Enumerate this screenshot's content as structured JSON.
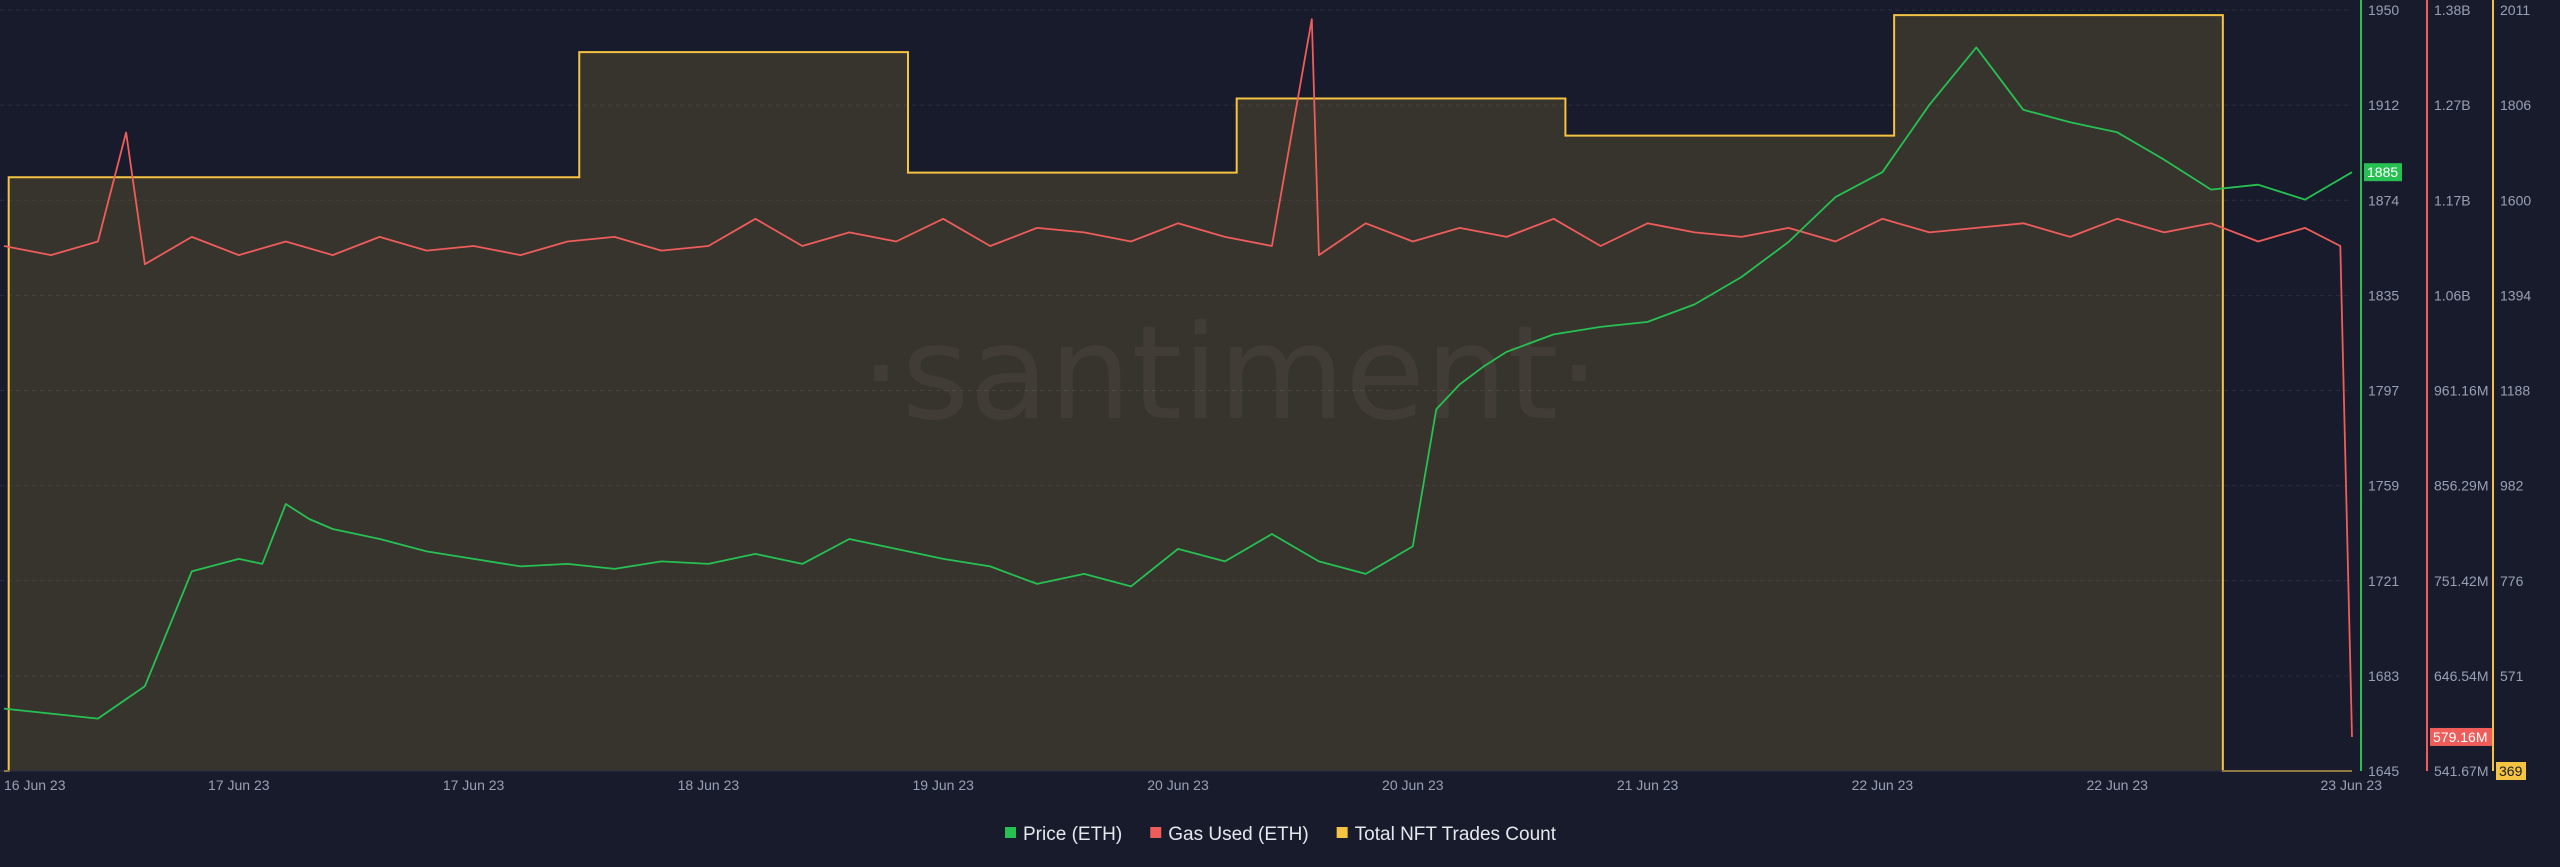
{
  "watermark": "·santiment·",
  "chart_data": {
    "type": "line",
    "x_labels": [
      "16 Jun 23",
      "17 Jun 23",
      "17 Jun 23",
      "18 Jun 23",
      "19 Jun 23",
      "20 Jun 23",
      "20 Jun 23",
      "21 Jun 23",
      "22 Jun 23",
      "22 Jun 23",
      "23 Jun 23"
    ],
    "grid": "horizontal dashed",
    "legend_position": "bottom-center",
    "axes": {
      "price": {
        "ticks": [
          "1950",
          "1912",
          "1874",
          "1835",
          "1797",
          "1759",
          "1721",
          "1683",
          "1645"
        ],
        "range": [
          1645,
          1950
        ],
        "current_badge": "1885"
      },
      "gas": {
        "ticks": [
          "1.38B",
          "1.27B",
          "1.17B",
          "1.06B",
          "961.16M",
          "856.29M",
          "751.42M",
          "646.54M",
          "541.67M"
        ],
        "range": [
          541670000,
          1380000000
        ],
        "current_badge": "579.16M"
      },
      "nft": {
        "ticks": [
          "2011",
          "1806",
          "1600",
          "1394",
          "1188",
          "982",
          "776",
          "571",
          "369"
        ],
        "range": [
          369,
          2011
        ],
        "current_badge": "369"
      }
    },
    "series": [
      {
        "name": "Price (ETH)",
        "color": "#26c152",
        "axis": "price",
        "x": [
          0,
          0.2,
          0.4,
          0.6,
          0.8,
          1,
          1.1,
          1.2,
          1.3,
          1.4,
          1.6,
          1.8,
          2,
          2.2,
          2.4,
          2.6,
          2.8,
          3,
          3.2,
          3.4,
          3.6,
          3.8,
          4,
          4.2,
          4.4,
          4.6,
          4.8,
          5,
          5.2,
          5.4,
          5.6,
          5.8,
          6,
          6.1,
          6.2,
          6.3,
          6.4,
          6.6,
          6.8,
          7,
          7.2,
          7.4,
          7.6,
          7.8,
          8,
          8.2,
          8.4,
          8.6,
          8.8,
          9,
          9.2,
          9.4,
          9.6,
          9.8,
          10
        ],
        "y": [
          1670,
          1668,
          1666,
          1679,
          1725,
          1730,
          1728,
          1752,
          1746,
          1742,
          1738,
          1733,
          1730,
          1727,
          1728,
          1726,
          1729,
          1728,
          1732,
          1728,
          1738,
          1734,
          1730,
          1727,
          1720,
          1724,
          1719,
          1734,
          1729,
          1740,
          1729,
          1724,
          1735,
          1790,
          1800,
          1807,
          1813,
          1820,
          1823,
          1825,
          1832,
          1843,
          1857,
          1875,
          1885,
          1912,
          1935,
          1910,
          1905,
          1901,
          1890,
          1878,
          1880,
          1874,
          1885
        ]
      },
      {
        "name": "Gas Used (ETH)",
        "color": "#ee5d5a",
        "axis": "gas",
        "x": [
          0,
          0.2,
          0.4,
          0.52,
          0.6,
          0.8,
          1,
          1.2,
          1.4,
          1.6,
          1.8,
          2,
          2.2,
          2.4,
          2.6,
          2.8,
          3,
          3.2,
          3.4,
          3.6,
          3.8,
          4,
          4.2,
          4.4,
          4.6,
          4.8,
          5,
          5.2,
          5.4,
          5.57,
          5.6,
          5.8,
          6,
          6.2,
          6.4,
          6.6,
          6.8,
          7,
          7.2,
          7.4,
          7.6,
          7.8,
          8,
          8.2,
          8.4,
          8.6,
          8.8,
          9,
          9.2,
          9.4,
          9.6,
          9.8,
          9.95,
          10
        ],
        "y": [
          1120000000,
          1110000000,
          1125000000,
          1245000000,
          1100000000,
          1130000000,
          1110000000,
          1125000000,
          1110000000,
          1130000000,
          1115000000,
          1120000000,
          1110000000,
          1125000000,
          1130000000,
          1115000000,
          1120000000,
          1150000000,
          1120000000,
          1135000000,
          1125000000,
          1150000000,
          1120000000,
          1140000000,
          1135000000,
          1125000000,
          1145000000,
          1130000000,
          1120000000,
          1370000000,
          1110000000,
          1145000000,
          1125000000,
          1140000000,
          1130000000,
          1150000000,
          1120000000,
          1145000000,
          1135000000,
          1130000000,
          1140000000,
          1125000000,
          1150000000,
          1135000000,
          1140000000,
          1145000000,
          1130000000,
          1150000000,
          1135000000,
          1145000000,
          1125000000,
          1140000000,
          1120000000,
          579160000
        ]
      },
      {
        "name": "Total NFT Trades Count",
        "color": "#f5c342",
        "axis": "nft",
        "style": "step-area",
        "x": [
          0,
          0.02,
          2.45,
          3.85,
          5.25,
          6.65,
          8.05,
          9.45,
          10
        ],
        "y": [
          369,
          1650,
          1920,
          1660,
          1820,
          1740,
          2000,
          369,
          369
        ]
      }
    ]
  }
}
